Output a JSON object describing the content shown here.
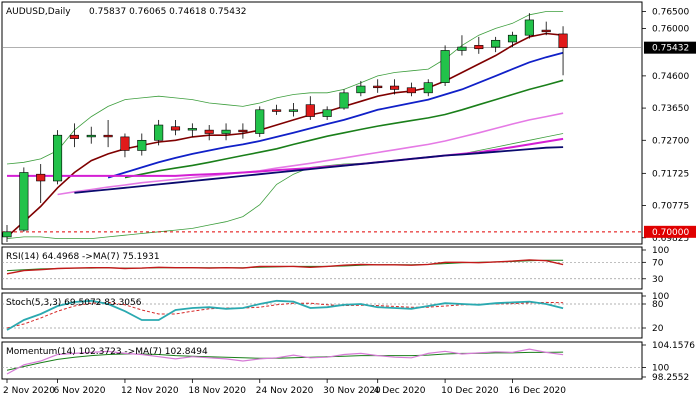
{
  "colors": {
    "bull": "#22c24a",
    "bear": "#e01b1b",
    "ma_dark_red": "#7f0000",
    "ma_blue": "#1020c8",
    "ma_green": "#1a7f1a",
    "ma_pink": "#e57ae5",
    "ma_magenta": "#d41fd4",
    "ma_navy": "#0a0a6e",
    "band": "#3d9e3d",
    "rsi_line": "#c21a1a",
    "rsi_ma": "#1a7f1a",
    "stoch_k": "#2aa9b0",
    "stoch_d": "#d62a2a",
    "mom_line": "#d67ad6",
    "mom_ma": "#1a7f1a",
    "red_line": "#e00000",
    "price_line": "#808080"
  },
  "header": {
    "symbol": "AUDUSD,Daily",
    "ohlc": "0.75837 0.76065 0.74618 0.75432"
  },
  "current_price_label": "0.75432",
  "level_label": "0.70000",
  "rsi_header": "RSI(14) 64.4968 ->MA(7) 75.1931",
  "stoch_header": "Stoch(5,3,3) 69.5072 83.3056",
  "momentum_header": "Momentum(14) 102.3723 ->MA(7) 102.8494",
  "chart_data": {
    "type": "candlestick",
    "title": "AUDUSD,Daily",
    "x_tick_labels": [
      "2 Nov 2020",
      "6 Nov 2020",
      "12 Nov 2020",
      "18 Nov 2020",
      "24 Nov 2020",
      "30 Nov 2020",
      "4 Dec 2020",
      "10 Dec 2020",
      "16 Dec 2020"
    ],
    "y_tick_labels": [
      "0.76500",
      "0.76000",
      "0.75432",
      "0.74600",
      "0.73650",
      "0.72700",
      "0.71725",
      "0.70775",
      "0.70000",
      "0.69825"
    ],
    "ylim": [
      0.697,
      0.7672
    ],
    "candles": [
      {
        "o": 0.6985,
        "h": 0.702,
        "l": 0.697,
        "c": 0.7
      },
      {
        "o": 0.7005,
        "h": 0.719,
        "l": 0.7,
        "c": 0.7175
      },
      {
        "o": 0.717,
        "h": 0.72,
        "l": 0.7085,
        "c": 0.715
      },
      {
        "o": 0.715,
        "h": 0.73,
        "l": 0.714,
        "c": 0.7285
      },
      {
        "o": 0.7285,
        "h": 0.732,
        "l": 0.725,
        "c": 0.7275
      },
      {
        "o": 0.728,
        "h": 0.731,
        "l": 0.726,
        "c": 0.7285
      },
      {
        "o": 0.7285,
        "h": 0.733,
        "l": 0.725,
        "c": 0.728
      },
      {
        "o": 0.728,
        "h": 0.729,
        "l": 0.722,
        "c": 0.724
      },
      {
        "o": 0.724,
        "h": 0.729,
        "l": 0.7225,
        "c": 0.727
      },
      {
        "o": 0.727,
        "h": 0.733,
        "l": 0.7255,
        "c": 0.7315
      },
      {
        "o": 0.731,
        "h": 0.733,
        "l": 0.7285,
        "c": 0.73
      },
      {
        "o": 0.73,
        "h": 0.732,
        "l": 0.728,
        "c": 0.7305
      },
      {
        "o": 0.73,
        "h": 0.7315,
        "l": 0.727,
        "c": 0.729
      },
      {
        "o": 0.729,
        "h": 0.732,
        "l": 0.727,
        "c": 0.73
      },
      {
        "o": 0.73,
        "h": 0.732,
        "l": 0.7275,
        "c": 0.7295
      },
      {
        "o": 0.729,
        "h": 0.737,
        "l": 0.728,
        "c": 0.736
      },
      {
        "o": 0.736,
        "h": 0.7375,
        "l": 0.7345,
        "c": 0.7355
      },
      {
        "o": 0.7355,
        "h": 0.738,
        "l": 0.734,
        "c": 0.736
      },
      {
        "o": 0.7375,
        "h": 0.74,
        "l": 0.733,
        "c": 0.734
      },
      {
        "o": 0.734,
        "h": 0.737,
        "l": 0.733,
        "c": 0.736
      },
      {
        "o": 0.7365,
        "h": 0.742,
        "l": 0.736,
        "c": 0.741
      },
      {
        "o": 0.741,
        "h": 0.7445,
        "l": 0.74,
        "c": 0.743
      },
      {
        "o": 0.743,
        "h": 0.745,
        "l": 0.741,
        "c": 0.7425
      },
      {
        "o": 0.743,
        "h": 0.745,
        "l": 0.7405,
        "c": 0.742
      },
      {
        "o": 0.7425,
        "h": 0.744,
        "l": 0.74,
        "c": 0.741
      },
      {
        "o": 0.741,
        "h": 0.745,
        "l": 0.74,
        "c": 0.744
      },
      {
        "o": 0.744,
        "h": 0.755,
        "l": 0.743,
        "c": 0.7535
      },
      {
        "o": 0.7535,
        "h": 0.758,
        "l": 0.752,
        "c": 0.7545
      },
      {
        "o": 0.755,
        "h": 0.7575,
        "l": 0.7525,
        "c": 0.754
      },
      {
        "o": 0.7545,
        "h": 0.7575,
        "l": 0.753,
        "c": 0.7565
      },
      {
        "o": 0.756,
        "h": 0.759,
        "l": 0.7545,
        "c": 0.758
      },
      {
        "o": 0.758,
        "h": 0.7645,
        "l": 0.757,
        "c": 0.7625
      },
      {
        "o": 0.7595,
        "h": 0.762,
        "l": 0.758,
        "c": 0.759
      },
      {
        "o": 0.75837,
        "h": 0.76065,
        "l": 0.74618,
        "c": 0.75432
      }
    ],
    "moving_averages": [
      {
        "key": "ma_dark_red",
        "values": [
          0.6985,
          0.703,
          0.7075,
          0.713,
          0.7175,
          0.721,
          0.723,
          0.7245,
          0.7255,
          0.7265,
          0.727,
          0.728,
          0.7285,
          0.7285,
          0.729,
          0.73,
          0.7315,
          0.733,
          0.7345,
          0.7355,
          0.737,
          0.7385,
          0.74,
          0.741,
          0.7415,
          0.7425,
          0.7445,
          0.747,
          0.7495,
          0.752,
          0.755,
          0.7575,
          0.7585,
          0.758
        ]
      },
      {
        "key": "ma_blue",
        "values": [
          null,
          null,
          null,
          null,
          null,
          null,
          0.716,
          0.7175,
          0.719,
          0.7205,
          0.7218,
          0.723,
          0.724,
          0.725,
          0.7258,
          0.7268,
          0.728,
          0.7292,
          0.7305,
          0.7318,
          0.733,
          0.7345,
          0.736,
          0.737,
          0.738,
          0.739,
          0.7405,
          0.742,
          0.744,
          0.746,
          0.748,
          0.75,
          0.7515,
          0.7528
        ]
      },
      {
        "key": "ma_green",
        "values": [
          null,
          null,
          null,
          null,
          null,
          null,
          null,
          0.716,
          0.717,
          0.718,
          0.7188,
          0.7196,
          0.7205,
          0.7215,
          0.7225,
          0.7235,
          0.7245,
          0.7258,
          0.727,
          0.7282,
          0.7292,
          0.7302,
          0.7312,
          0.732,
          0.7328,
          0.7336,
          0.7346,
          0.736,
          0.7375,
          0.739,
          0.7405,
          0.742,
          0.7433,
          0.7447
        ]
      },
      {
        "key": "ma_pink",
        "values": [
          null,
          null,
          null,
          0.711,
          0.7118,
          0.7125,
          0.7132,
          0.7138,
          0.7145,
          0.715,
          0.7155,
          0.716,
          0.7165,
          0.717,
          0.7175,
          0.718,
          0.7188,
          0.7195,
          0.7202,
          0.721,
          0.7218,
          0.7226,
          0.7234,
          0.7242,
          0.725,
          0.7258,
          0.7268,
          0.728,
          0.7292,
          0.7305,
          0.7318,
          0.733,
          0.734,
          0.735
        ]
      },
      {
        "key": "ma_magenta",
        "values": [
          0.7165,
          0.7165,
          0.7165,
          0.7165,
          0.7165,
          0.7165,
          0.7165,
          0.7165,
          0.7165,
          0.7165,
          0.7165,
          0.7168,
          0.717,
          0.7172,
          0.7175,
          0.7178,
          0.7182,
          0.7185,
          0.7188,
          0.7192,
          0.7196,
          0.72,
          0.7205,
          0.721,
          0.7215,
          0.722,
          0.7225,
          0.723,
          0.7235,
          0.7242,
          0.725,
          0.7258,
          0.7266,
          0.7274
        ]
      },
      {
        "key": "ma_navy",
        "values": [
          null,
          null,
          null,
          null,
          0.7115,
          0.712,
          0.7125,
          0.713,
          0.7135,
          0.714,
          0.7145,
          0.715,
          0.7155,
          0.716,
          0.7165,
          0.717,
          0.7175,
          0.718,
          0.7185,
          0.719,
          0.7195,
          0.72,
          0.7205,
          0.721,
          0.7215,
          0.722,
          0.7225,
          0.7228,
          0.7232,
          0.7236,
          0.724,
          0.7244,
          0.7248,
          0.725
        ]
      }
    ],
    "bollinger_upper": [
      0.72,
      0.7205,
      0.7215,
      0.724,
      0.73,
      0.734,
      0.737,
      0.739,
      0.7395,
      0.74,
      0.7395,
      0.739,
      0.738,
      0.7375,
      0.737,
      0.738,
      0.7395,
      0.7405,
      0.741,
      0.741,
      0.742,
      0.744,
      0.746,
      0.747,
      0.7475,
      0.748,
      0.751,
      0.755,
      0.758,
      0.76,
      0.7615,
      0.764,
      0.765,
      0.765
    ],
    "bollinger_lower": [
      0.698,
      0.6985,
      0.6985,
      0.698,
      0.698,
      0.698,
      0.6985,
      0.699,
      0.6995,
      0.7,
      0.7005,
      0.701,
      0.702,
      0.703,
      0.7045,
      0.708,
      0.714,
      0.717,
      0.719,
      0.7195,
      0.72,
      0.7202,
      0.7205,
      0.721,
      0.7215,
      0.722,
      0.7225,
      0.723,
      0.724,
      0.725,
      0.726,
      0.727,
      0.728,
      0.729
    ],
    "horizontal_level": 0.7,
    "current_price": 0.75432,
    "rsi": {
      "levels": [
        30,
        70,
        100
      ],
      "tick_labels": [
        "100",
        "70",
        "30"
      ],
      "line": [
        42,
        50,
        52,
        55,
        56,
        57,
        57,
        55,
        56,
        58,
        57,
        57,
        56,
        57,
        56,
        60,
        60,
        60,
        58,
        60,
        63,
        65,
        64,
        64,
        63,
        65,
        70,
        70,
        69,
        71,
        73,
        76,
        74,
        64.4968
      ],
      "ma": [
        50,
        52,
        54,
        55,
        56,
        56,
        57,
        56,
        56,
        57,
        57,
        57,
        57,
        57,
        57,
        58,
        59,
        60,
        60,
        60,
        61,
        63,
        64,
        64,
        64,
        65,
        67,
        69,
        70,
        71,
        72,
        74,
        75,
        75.1931
      ]
    },
    "stoch": {
      "levels": [
        20,
        80,
        100
      ],
      "tick_labels": [
        "100",
        "80",
        "20"
      ],
      "k": [
        15,
        40,
        55,
        75,
        85,
        88,
        80,
        62,
        40,
        40,
        65,
        70,
        72,
        68,
        70,
        80,
        88,
        86,
        70,
        72,
        78,
        80,
        72,
        70,
        68,
        75,
        82,
        80,
        78,
        82,
        84,
        86,
        80,
        69.5072
      ],
      "d": [
        20,
        30,
        45,
        62,
        75,
        82,
        84,
        78,
        65,
        55,
        55,
        62,
        68,
        70,
        70,
        72,
        78,
        82,
        82,
        78,
        76,
        77,
        76,
        74,
        72,
        72,
        75,
        78,
        79,
        80,
        81,
        83,
        84,
        83.3056
      ]
    },
    "momentum": {
      "tick_labels": [
        "104.1576",
        "100",
        "98.2552"
      ],
      "reference": 100,
      "range": [
        98.2552,
        104.1576
      ],
      "line": [
        98.8,
        100.5,
        101.2,
        102.4,
        102.6,
        102.8,
        103.0,
        102.6,
        102.4,
        102.0,
        101.6,
        102.0,
        101.8,
        101.6,
        101.2,
        101.6,
        101.8,
        102.3,
        101.8,
        101.9,
        102.4,
        102.6,
        102.2,
        101.9,
        101.8,
        102.6,
        103.0,
        102.5,
        102.7,
        102.9,
        102.8,
        103.4,
        102.8,
        102.3723
      ],
      "ma": [
        99.5,
        100.2,
        100.9,
        101.5,
        101.9,
        102.2,
        102.4,
        102.5,
        102.5,
        102.4,
        102.2,
        102.1,
        102.0,
        101.9,
        101.8,
        101.7,
        101.7,
        101.8,
        101.9,
        102.0,
        102.1,
        102.2,
        102.2,
        102.2,
        102.2,
        102.3,
        102.5,
        102.6,
        102.6,
        102.7,
        102.7,
        102.8,
        102.8,
        102.8494
      ]
    }
  }
}
